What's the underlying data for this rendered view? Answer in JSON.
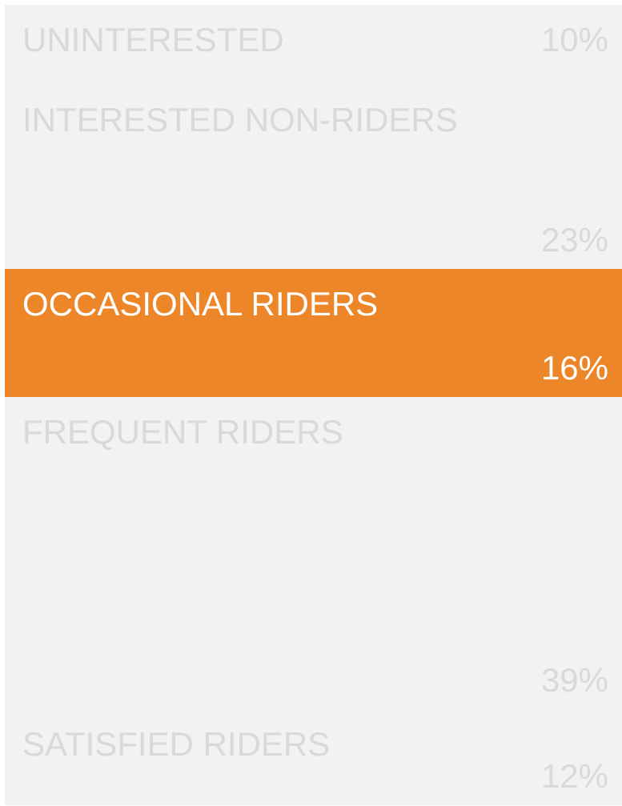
{
  "chart_data": {
    "type": "stacked-column",
    "categories": [
      "UNINTERESTED",
      "INTERESTED NON-RIDERS",
      "OCCASIONAL RIDERS",
      "FREQUENT RIDERS",
      "SATISFIED RIDERS"
    ],
    "values": [
      10,
      23,
      16,
      39,
      12
    ],
    "value_labels": [
      "10%",
      "23%",
      "16%",
      "39%",
      "12%"
    ],
    "colors": [
      "#f2f2f2",
      "#f2f2f2",
      "#ec8628",
      "#f2f2f2",
      "#f2f2f2"
    ]
  }
}
